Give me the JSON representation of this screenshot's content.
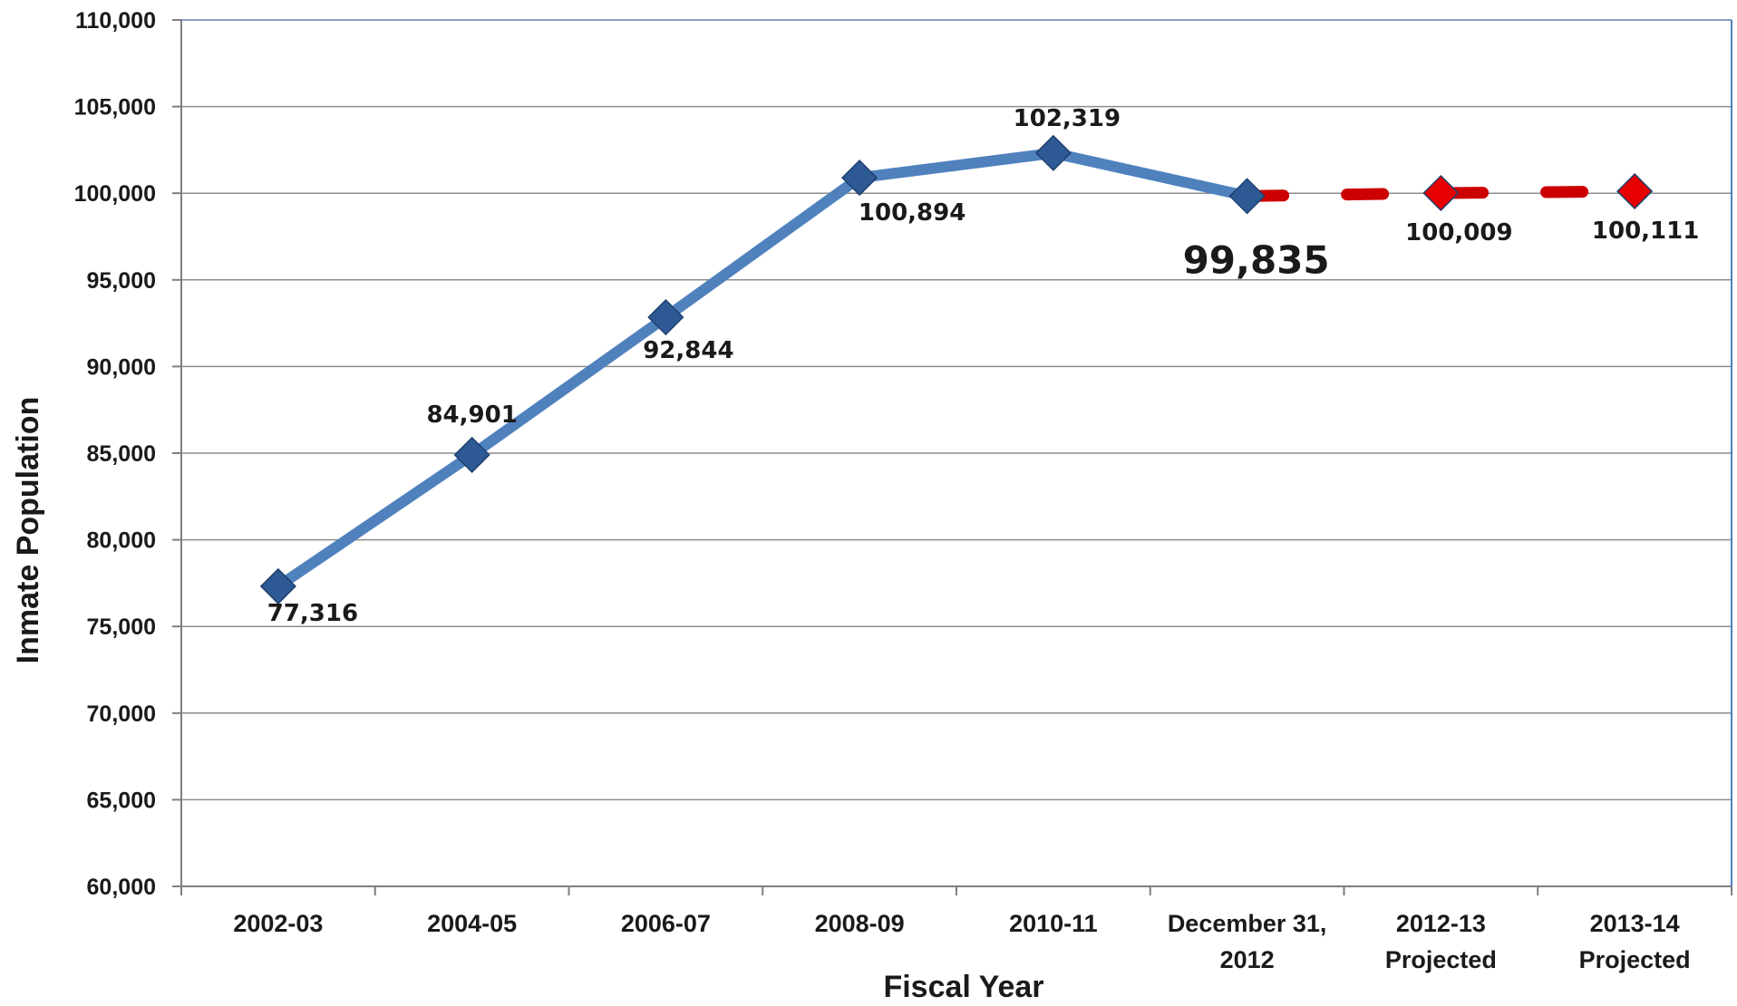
{
  "chart_data": {
    "type": "line",
    "title": "",
    "xlabel": "Fiscal Year",
    "ylabel": "Inmate Population",
    "ylim": [
      60000,
      110000
    ],
    "ytick_step": 5000,
    "grid": true,
    "categories": [
      [
        "2002-03"
      ],
      [
        "2004-05"
      ],
      [
        "2006-07"
      ],
      [
        "2008-09"
      ],
      [
        "2010-11"
      ],
      [
        "December 31,",
        "2012"
      ],
      [
        "2012-13",
        "Projected"
      ],
      [
        "2013-14",
        "Projected"
      ]
    ],
    "series": [
      {
        "style": "solid",
        "color": "#4f81bd",
        "marker_color": "#2d5a95",
        "points": [
          {
            "index": 0,
            "value": 77316,
            "label": "77,316"
          },
          {
            "index": 1,
            "value": 84901,
            "label": "84,901"
          },
          {
            "index": 2,
            "value": 92844,
            "label": "92,844"
          },
          {
            "index": 3,
            "value": 100894,
            "label": "100,894"
          },
          {
            "index": 4,
            "value": 102319,
            "label": "102,319"
          },
          {
            "index": 5,
            "value": 99835,
            "label": "99,835"
          }
        ]
      },
      {
        "style": "dashed",
        "color": "#cc0000",
        "marker_color": "#e60000",
        "points": [
          {
            "index": 5,
            "value": 99835,
            "label": ""
          },
          {
            "index": 6,
            "value": 100009,
            "label": "100,009"
          },
          {
            "index": 7,
            "value": 100111,
            "label": "100,111"
          }
        ]
      }
    ]
  }
}
